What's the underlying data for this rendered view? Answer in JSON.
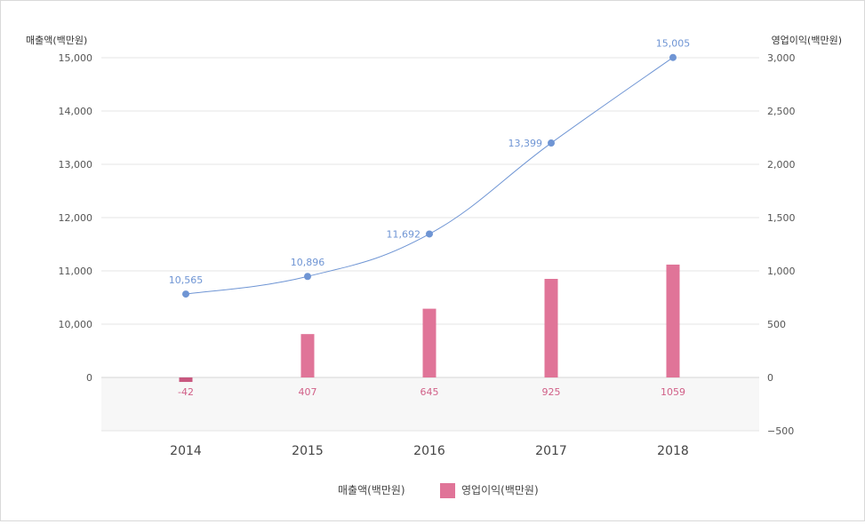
{
  "chart_data": {
    "type": "bar",
    "categories": [
      "2014",
      "2015",
      "2016",
      "2017",
      "2018"
    ],
    "series": [
      {
        "name": "매출액(백만원)",
        "type": "line",
        "axis": "left",
        "values": [
          10565,
          10896,
          11692,
          13399,
          15005
        ],
        "labels": [
          "10,565",
          "10,896",
          "11,692",
          "13,399",
          "15,005"
        ],
        "color": "#6f95d4"
      },
      {
        "name": "영업이익(백만원)",
        "type": "bar",
        "axis": "right",
        "values": [
          -42,
          407,
          645,
          925,
          1059
        ],
        "labels": [
          "-42",
          "407",
          "645",
          "925",
          "1059"
        ],
        "color": "#e07498",
        "negative_color": "#c8577f"
      }
    ],
    "left_axis": {
      "title": "매출액(백만원)",
      "ticks": [
        0,
        10000,
        11000,
        12000,
        13000,
        14000,
        15000
      ],
      "tick_labels": [
        "0",
        "10,000",
        "11,000",
        "12,000",
        "13,000",
        "14,000",
        "15,000"
      ]
    },
    "right_axis": {
      "title": "영업이익(백만원)",
      "ticks": [
        -500,
        0,
        500,
        1000,
        1500,
        2000,
        2500,
        3000
      ],
      "tick_labels": [
        "−500",
        "0",
        "500",
        "1,000",
        "1,500",
        "2,000",
        "2,500",
        "3,000"
      ],
      "ylim": [
        -500,
        3000
      ]
    },
    "grid": true,
    "legend_position": "bottom-center",
    "legend": [
      "매출액(백만원)",
      "영업이익(백만원)"
    ]
  }
}
